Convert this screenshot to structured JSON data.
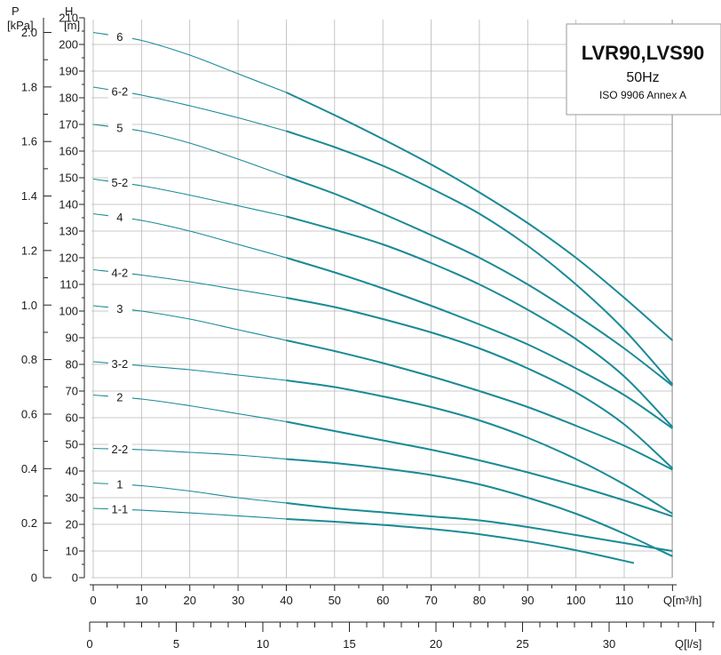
{
  "chart_data": {
    "type": "line",
    "title": "LVR90,LVS90",
    "subtitle": "50Hz",
    "note": "ISO 9906 Annex A",
    "x_axis": {
      "label": "Q[m³/h]",
      "range": [
        0,
        120
      ],
      "ticks": [
        0,
        10,
        20,
        30,
        40,
        50,
        60,
        70,
        80,
        90,
        100,
        110
      ]
    },
    "x2_axis": {
      "label": "Q[l/s]",
      "range": [
        0,
        33.333
      ],
      "ticks": [
        0,
        5,
        10,
        15,
        20,
        25,
        30
      ]
    },
    "y_axis": {
      "label": "H",
      "unit": "[m]",
      "range": [
        0,
        210
      ],
      "ticks": [
        0,
        10,
        20,
        30,
        40,
        50,
        60,
        70,
        80,
        90,
        100,
        110,
        120,
        130,
        140,
        150,
        160,
        170,
        180,
        190,
        200,
        210
      ]
    },
    "y2_axis": {
      "label": "P",
      "unit": "[kPa]",
      "range": [
        0,
        2.2
      ],
      "ticks": [
        "0",
        "0.2",
        "0.4",
        "0.6",
        "0.8",
        "1.0",
        "1.2",
        "1.4",
        "1.6",
        "1.8",
        "2.0"
      ]
    },
    "grid": true,
    "line_color": "#1a8a96",
    "series": [
      {
        "name": "6",
        "points": [
          [
            0,
            204.5
          ],
          [
            10,
            201.5
          ],
          [
            20,
            196
          ],
          [
            30,
            189
          ],
          [
            40,
            182
          ],
          [
            50,
            173.5
          ],
          [
            60,
            164.5
          ],
          [
            70,
            155
          ],
          [
            80,
            144.5
          ],
          [
            90,
            133
          ],
          [
            100,
            120
          ],
          [
            110,
            105
          ],
          [
            120,
            89
          ]
        ]
      },
      {
        "name": "6-2",
        "points": [
          [
            0,
            184
          ],
          [
            10,
            181
          ],
          [
            20,
            177
          ],
          [
            30,
            172.5
          ],
          [
            40,
            167.5
          ],
          [
            50,
            161.5
          ],
          [
            60,
            154.5
          ],
          [
            70,
            146
          ],
          [
            80,
            136.5
          ],
          [
            90,
            124.5
          ],
          [
            100,
            110
          ],
          [
            110,
            93
          ],
          [
            120,
            72.5
          ]
        ]
      },
      {
        "name": "5",
        "points": [
          [
            0,
            170
          ],
          [
            10,
            167.5
          ],
          [
            20,
            163
          ],
          [
            30,
            157
          ],
          [
            40,
            150.5
          ],
          [
            50,
            144
          ],
          [
            60,
            136.5
          ],
          [
            70,
            128.5
          ],
          [
            80,
            120
          ],
          [
            90,
            110
          ],
          [
            100,
            98.5
          ],
          [
            110,
            86
          ],
          [
            120,
            72
          ]
        ]
      },
      {
        "name": "5-2",
        "points": [
          [
            0,
            149.5
          ],
          [
            10,
            147
          ],
          [
            20,
            143.5
          ],
          [
            30,
            139.5
          ],
          [
            40,
            135.5
          ],
          [
            50,
            130.5
          ],
          [
            60,
            125
          ],
          [
            70,
            118
          ],
          [
            80,
            110
          ],
          [
            90,
            100.5
          ],
          [
            100,
            89.5
          ],
          [
            110,
            75.5
          ],
          [
            120,
            56.5
          ]
        ]
      },
      {
        "name": "4",
        "points": [
          [
            0,
            136.5
          ],
          [
            10,
            134
          ],
          [
            20,
            130
          ],
          [
            30,
            125
          ],
          [
            40,
            120
          ],
          [
            50,
            114.5
          ],
          [
            60,
            108.5
          ],
          [
            70,
            102
          ],
          [
            80,
            95
          ],
          [
            90,
            87.5
          ],
          [
            100,
            78.5
          ],
          [
            110,
            68.5
          ],
          [
            120,
            56
          ]
        ]
      },
      {
        "name": "4-2",
        "points": [
          [
            0,
            115.5
          ],
          [
            10,
            113.5
          ],
          [
            20,
            111
          ],
          [
            30,
            108
          ],
          [
            40,
            105
          ],
          [
            50,
            101.5
          ],
          [
            60,
            97
          ],
          [
            70,
            92
          ],
          [
            80,
            86
          ],
          [
            90,
            78.5
          ],
          [
            100,
            69.5
          ],
          [
            110,
            57.5
          ],
          [
            120,
            41
          ]
        ]
      },
      {
        "name": "3",
        "points": [
          [
            0,
            102
          ],
          [
            10,
            100
          ],
          [
            20,
            97
          ],
          [
            30,
            93
          ],
          [
            40,
            89
          ],
          [
            50,
            85
          ],
          [
            60,
            80.5
          ],
          [
            70,
            75.5
          ],
          [
            80,
            70
          ],
          [
            90,
            64
          ],
          [
            100,
            57
          ],
          [
            110,
            49.5
          ],
          [
            120,
            40.5
          ]
        ]
      },
      {
        "name": "3-2",
        "points": [
          [
            0,
            81
          ],
          [
            10,
            79.5
          ],
          [
            20,
            78
          ],
          [
            30,
            76
          ],
          [
            40,
            74
          ],
          [
            50,
            71.5
          ],
          [
            60,
            68
          ],
          [
            70,
            64
          ],
          [
            80,
            59
          ],
          [
            90,
            52.5
          ],
          [
            100,
            44.5
          ],
          [
            110,
            35
          ],
          [
            120,
            24
          ]
        ]
      },
      {
        "name": "2",
        "points": [
          [
            0,
            68.5
          ],
          [
            10,
            67
          ],
          [
            20,
            64.5
          ],
          [
            30,
            61.5
          ],
          [
            40,
            58.5
          ],
          [
            50,
            55
          ],
          [
            60,
            51.5
          ],
          [
            70,
            48
          ],
          [
            80,
            44
          ],
          [
            90,
            39.5
          ],
          [
            100,
            34.5
          ],
          [
            110,
            29
          ],
          [
            120,
            23
          ]
        ]
      },
      {
        "name": "2-2",
        "points": [
          [
            0,
            48.5
          ],
          [
            10,
            48
          ],
          [
            20,
            47
          ],
          [
            30,
            46
          ],
          [
            40,
            44.5
          ],
          [
            50,
            43
          ],
          [
            60,
            41
          ],
          [
            70,
            38.5
          ],
          [
            80,
            35
          ],
          [
            90,
            30
          ],
          [
            100,
            24
          ],
          [
            110,
            16.5
          ],
          [
            120,
            8
          ]
        ]
      },
      {
        "name": "1",
        "points": [
          [
            0,
            35.5
          ],
          [
            10,
            34.5
          ],
          [
            20,
            32.5
          ],
          [
            30,
            30
          ],
          [
            40,
            28
          ],
          [
            50,
            26
          ],
          [
            60,
            24.5
          ],
          [
            70,
            23
          ],
          [
            80,
            21.5
          ],
          [
            90,
            19
          ],
          [
            100,
            16
          ],
          [
            110,
            13
          ],
          [
            120,
            10
          ]
        ]
      },
      {
        "name": "1-1",
        "points": [
          [
            0,
            26
          ],
          [
            10,
            25.3
          ],
          [
            20,
            24.3
          ],
          [
            30,
            23.2
          ],
          [
            40,
            22
          ],
          [
            50,
            21
          ],
          [
            60,
            19.8
          ],
          [
            70,
            18.3
          ],
          [
            80,
            16.3
          ],
          [
            90,
            13.6
          ],
          [
            100,
            10.3
          ],
          [
            112,
            5.5
          ]
        ]
      }
    ]
  }
}
